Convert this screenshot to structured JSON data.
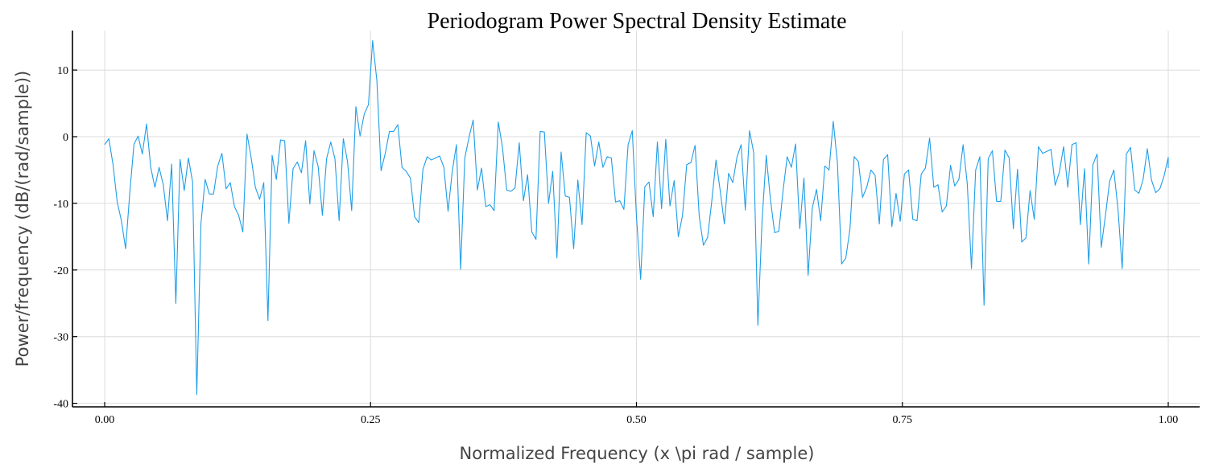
{
  "chart_data": {
    "type": "line",
    "title": "Periodogram Power Spectral Density Estimate",
    "xlabel": "Normalized Frequency (x \\pi rad / sample)",
    "ylabel": "Power/frequency (dB/(rad/sample))",
    "xlim": [
      0,
      1
    ],
    "ylim": [
      -40.5,
      16
    ],
    "xticks": [
      0,
      0.25,
      0.5,
      0.75,
      1
    ],
    "xtick_labels": [
      "0.00",
      "0.25",
      "0.50",
      "0.75",
      "1.00"
    ],
    "yticks": [
      -40,
      -30,
      -20,
      -10,
      0,
      10
    ],
    "ytick_labels": [
      "-40",
      "-30",
      "-20",
      "-10",
      "0",
      "10"
    ],
    "grid": true,
    "color": "#1f9ee8",
    "series": [
      {
        "x_start": 0,
        "x_step": 0.003937,
        "values": [
          -1.2,
          -0.3,
          -4.2,
          -9.8,
          -12.6,
          -16.8,
          -8.4,
          -1.1,
          0.1,
          -2.6,
          1.9,
          -4.6,
          -7.6,
          -4.6,
          -7.2,
          -12.6,
          -4.1,
          -25.0,
          -3.4,
          -8.1,
          -3.2,
          -6.8,
          -38.7,
          -13.0,
          -6.4,
          -8.6,
          -8.6,
          -4.4,
          -2.5,
          -7.8,
          -6.9,
          -10.5,
          -11.8,
          -14.3,
          0.4,
          -3.2,
          -7.6,
          -9.4,
          -6.9,
          -27.6,
          -2.8,
          -6.4,
          -0.5,
          -0.6,
          -13.0,
          -4.8,
          -3.8,
          -5.4,
          -0.6,
          -10.1,
          -2.1,
          -4.5,
          -11.8,
          -3.3,
          -0.8,
          -3.3,
          -12.6,
          -0.3,
          -3.7,
          -11.1,
          4.5,
          0.1,
          3.4,
          4.8,
          14.4,
          8.4,
          -5.1,
          -2.5,
          0.8,
          0.8,
          1.8,
          -4.6,
          -5.2,
          -6.2,
          -12.0,
          -12.9,
          -4.9,
          -3.0,
          -3.5,
          -3.2,
          -2.9,
          -4.6,
          -11.2,
          -5.2,
          -1.2,
          -19.9,
          -3.2,
          -0.1,
          2.5,
          -8.0,
          -4.7,
          -10.5,
          -10.2,
          -11.1,
          2.2,
          -1.6,
          -8.0,
          -8.2,
          -7.7,
          -0.9,
          -9.6,
          -5.7,
          -14.3,
          -15.4,
          0.8,
          0.7,
          -10.0,
          -5.2,
          -18.2,
          -2.3,
          -8.9,
          -9.1,
          -16.8,
          -6.5,
          -13.2,
          0.6,
          0.1,
          -4.4,
          -0.8,
          -4.6,
          -3.0,
          -3.2,
          -9.8,
          -9.6,
          -10.9,
          -1.2,
          0.9,
          -12.0,
          -21.4,
          -7.5,
          -6.8,
          -12.0,
          -0.8,
          -10.8,
          -0.4,
          -10.4,
          -6.6,
          -15.0,
          -11.8,
          -4.2,
          -3.9,
          -1.3,
          -12.0,
          -16.3,
          -15.1,
          -9.6,
          -3.5,
          -8.1,
          -13.1,
          -5.5,
          -6.9,
          -3.1,
          -1.2,
          -11.0,
          0.9,
          -2.4,
          -28.3,
          -12.6,
          -2.8,
          -9.4,
          -14.4,
          -14.2,
          -8.2,
          -3.0,
          -4.6,
          -1.1,
          -13.8,
          -6.2,
          -20.8,
          -10.7,
          -7.9,
          -12.6,
          -4.4,
          -5.0,
          2.3,
          -3.9,
          -19.1,
          -18.2,
          -13.8,
          -3.0,
          -3.7,
          -9.1,
          -7.6,
          -5.0,
          -5.8,
          -13.1,
          -3.4,
          -2.7,
          -13.5,
          -8.5,
          -12.7,
          -5.6,
          -5.0,
          -12.4,
          -12.6,
          -5.6,
          -4.7,
          -0.2,
          -7.6,
          -7.2,
          -11.3,
          -10.4,
          -4.3,
          -7.4,
          -6.4,
          -1.2,
          -7.1,
          -19.8,
          -5.0,
          -3.0,
          -25.3,
          -3.3,
          -2.1,
          -9.7,
          -9.7,
          -2.0,
          -3.2,
          -13.8,
          -4.9,
          -15.8,
          -15.2,
          -8.1,
          -12.4,
          -1.5,
          -2.5,
          -2.2,
          -1.9,
          -7.3,
          -5.3,
          -1.5,
          -7.6,
          -1.2,
          -0.9,
          -13.2,
          -4.8,
          -19.1,
          -4.2,
          -2.6,
          -16.6,
          -11.8,
          -6.7,
          -5.0,
          -10.9,
          -19.8,
          -2.6,
          -1.6,
          -8.0,
          -8.5,
          -6.4,
          -1.8,
          -6.5,
          -8.4,
          -7.8,
          -5.9,
          -3.1,
          -4.7
        ]
      }
    ]
  }
}
